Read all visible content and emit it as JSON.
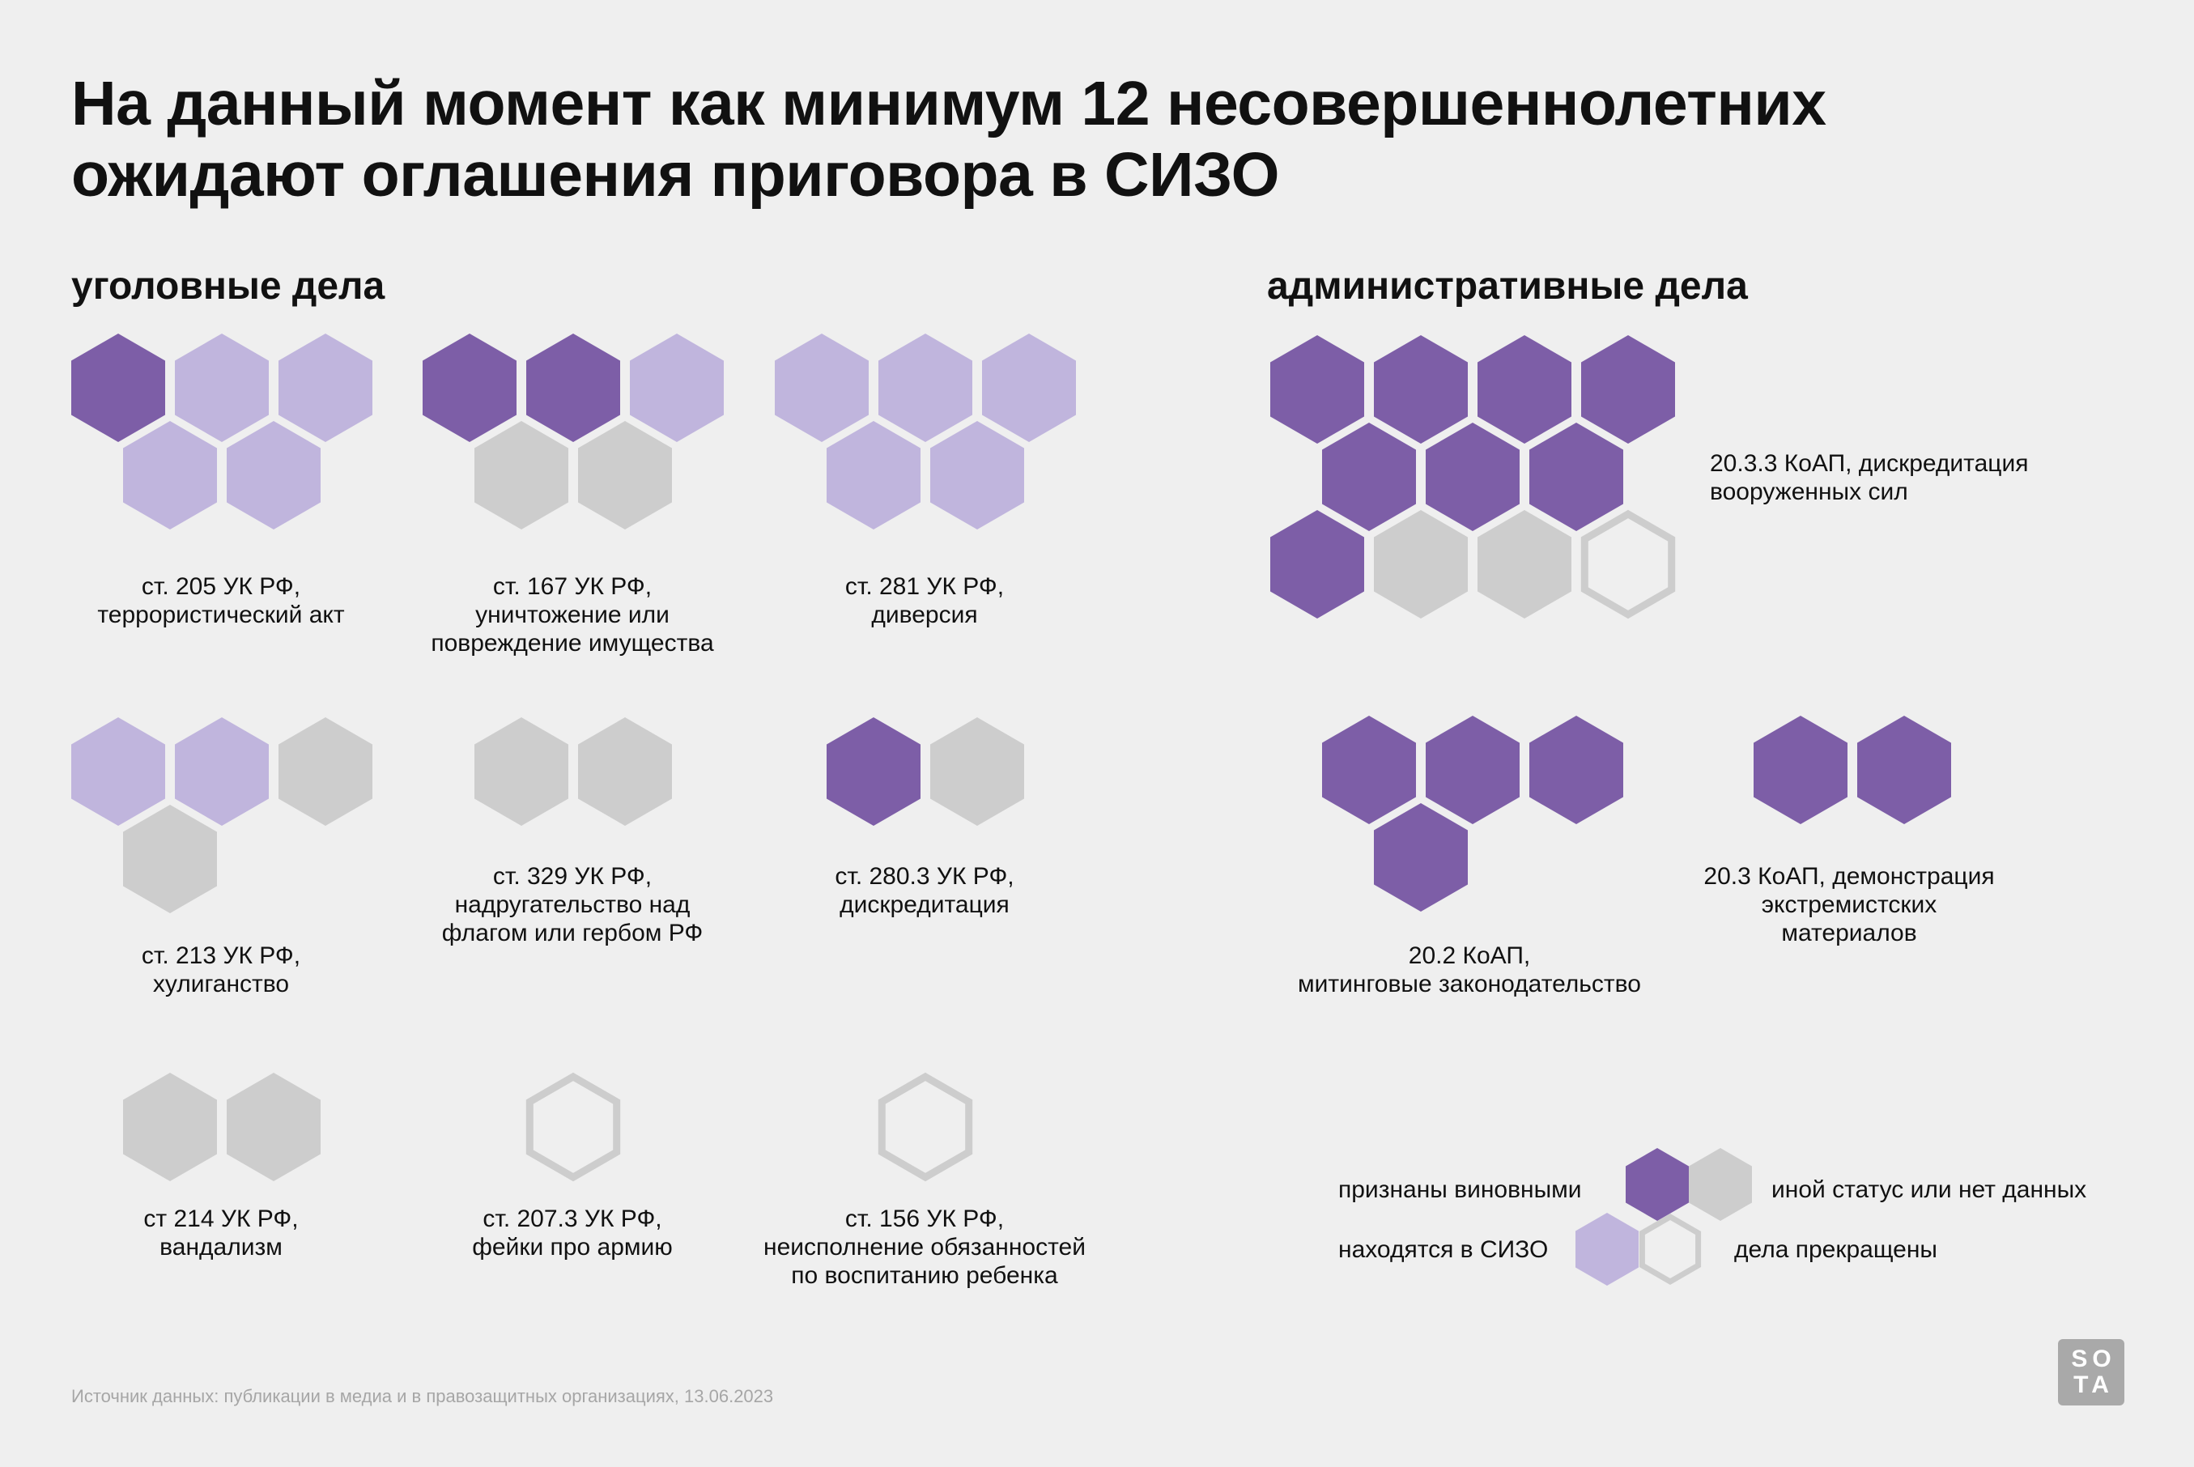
{
  "title": {
    "line1": "На данный момент как минимум 12 несовершеннолетних",
    "line2": "ожидают оглашения приговора в СИЗО"
  },
  "sections": {
    "criminal": "уголовные дела",
    "administrative": "административные дела"
  },
  "colors": {
    "guilty": "#7d5ea7",
    "in_sizo": "#c0b5dd",
    "other": "#cdcdcd",
    "terminated_outline": "#cdcdcd",
    "background": "#efefef"
  },
  "chart_data": {
    "type": "pictogram",
    "unit": "one hexagon = one case",
    "categories": [
      {
        "group": "criminal",
        "label": [
          "ст. 205 УК РФ,",
          "террористический акт"
        ],
        "cells": [
          "guilty",
          "in_sizo",
          "in_sizo",
          "in_sizo",
          "in_sizo"
        ]
      },
      {
        "group": "criminal",
        "label": [
          "ст. 167 УК РФ,",
          "уничтожение или",
          "повреждение имущества"
        ],
        "cells": [
          "guilty",
          "guilty",
          "in_sizo",
          "other",
          "other"
        ]
      },
      {
        "group": "criminal",
        "label": [
          "ст. 281 УК РФ,",
          "диверсия"
        ],
        "cells": [
          "in_sizo",
          "in_sizo",
          "in_sizo",
          "in_sizo",
          "in_sizo"
        ]
      },
      {
        "group": "criminal",
        "label": [
          "ст. 213 УК РФ,",
          "хулиганство"
        ],
        "cells": [
          "in_sizo",
          "in_sizo",
          "other",
          "other"
        ]
      },
      {
        "group": "criminal",
        "label": [
          "ст. 329 УК РФ,",
          "надругательство над",
          "флагом или гербом РФ"
        ],
        "cells": [
          "other",
          "other"
        ]
      },
      {
        "group": "criminal",
        "label": [
          "ст. 280.3 УК РФ,",
          "дискредитация"
        ],
        "cells": [
          "guilty",
          "other"
        ]
      },
      {
        "group": "criminal",
        "label": [
          "ст 214 УК РФ,",
          "вандализм"
        ],
        "cells": [
          "other",
          "other"
        ]
      },
      {
        "group": "criminal",
        "label": [
          "ст. 207.3 УК РФ,",
          "фейки про армию"
        ],
        "cells": [
          "terminated"
        ]
      },
      {
        "group": "criminal",
        "label": [
          "ст. 156 УК РФ,",
          "неисполнение обязанностей",
          "по воспитанию ребенка"
        ],
        "cells": [
          "terminated"
        ]
      },
      {
        "group": "administrative",
        "label": [
          "20.3.3 КоАП, дискредитация",
          "вооруженных сил"
        ],
        "cells": [
          "guilty",
          "guilty",
          "guilty",
          "guilty",
          "guilty",
          "guilty",
          "guilty",
          "guilty",
          "other",
          "other",
          "terminated"
        ]
      },
      {
        "group": "administrative",
        "label": [
          "20.2 КоАП,",
          "митинговые законодательство"
        ],
        "cells": [
          "guilty",
          "guilty",
          "guilty",
          "guilty"
        ]
      },
      {
        "group": "administrative",
        "label": [
          "20.3 КоАП, демонстрация",
          "экстремистских",
          "материалов"
        ],
        "cells": [
          "guilty",
          "guilty"
        ]
      }
    ],
    "legend": {
      "guilty": "признаны виновными",
      "other": "иной статус или нет данных",
      "in_sizo": "находятся в СИЗО",
      "terminated": "дела прекращены"
    }
  },
  "source": "Источник данных: публикации в медиа и в правозащитных организациях, 13.06.2023",
  "logo": {
    "line1": "SO",
    "line2": "TA"
  }
}
